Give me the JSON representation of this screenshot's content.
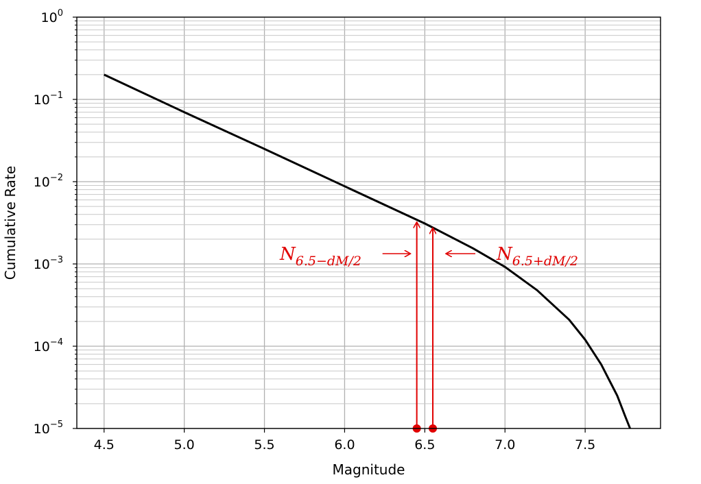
{
  "chart_data": {
    "type": "line",
    "title": "",
    "xlabel": "Magnitude",
    "ylabel": "Cumulative Rate",
    "xlim": [
      4.33,
      7.97
    ],
    "ylim": [
      1e-05,
      1
    ],
    "y_scale": "log",
    "grid": "on (major and minor)",
    "x_ticks": [
      "4.5",
      "5.0",
      "5.5",
      "6.0",
      "6.5",
      "7.0",
      "7.5"
    ],
    "y_ticks": [
      {
        "base": "10",
        "exp": "0",
        "value": 1
      },
      {
        "base": "10",
        "exp": "−1",
        "value": 0.1
      },
      {
        "base": "10",
        "exp": "−2",
        "value": 0.01
      },
      {
        "base": "10",
        "exp": "−3",
        "value": 0.001
      },
      {
        "base": "10",
        "exp": "−4",
        "value": 0.0001
      },
      {
        "base": "10",
        "exp": "−5",
        "value": 1e-05
      }
    ],
    "series": [
      {
        "color": "#000000",
        "x": [
          4.5,
          5.0,
          5.5,
          6.0,
          6.5,
          6.8,
          7.0,
          7.2,
          7.4,
          7.5,
          7.6,
          7.7,
          7.75,
          7.78
        ],
        "y": [
          0.2,
          0.07,
          0.025,
          0.0088,
          0.0031,
          0.00155,
          0.00092,
          0.00048,
          0.00021,
          0.00012,
          6e-05,
          2.5e-05,
          1.4e-05,
          1e-05
        ]
      }
    ],
    "annotations": [
      {
        "id": "minus",
        "base": "N",
        "sub": "6.5−dM/2",
        "color": "#e00000",
        "point_x": 6.45,
        "point_y": 0.0033,
        "label_side": "left"
      },
      {
        "id": "plus",
        "base": "N",
        "sub": "6.5+dM/2",
        "color": "#e00000",
        "point_x": 6.55,
        "point_y": 0.0028,
        "label_side": "right"
      }
    ]
  }
}
